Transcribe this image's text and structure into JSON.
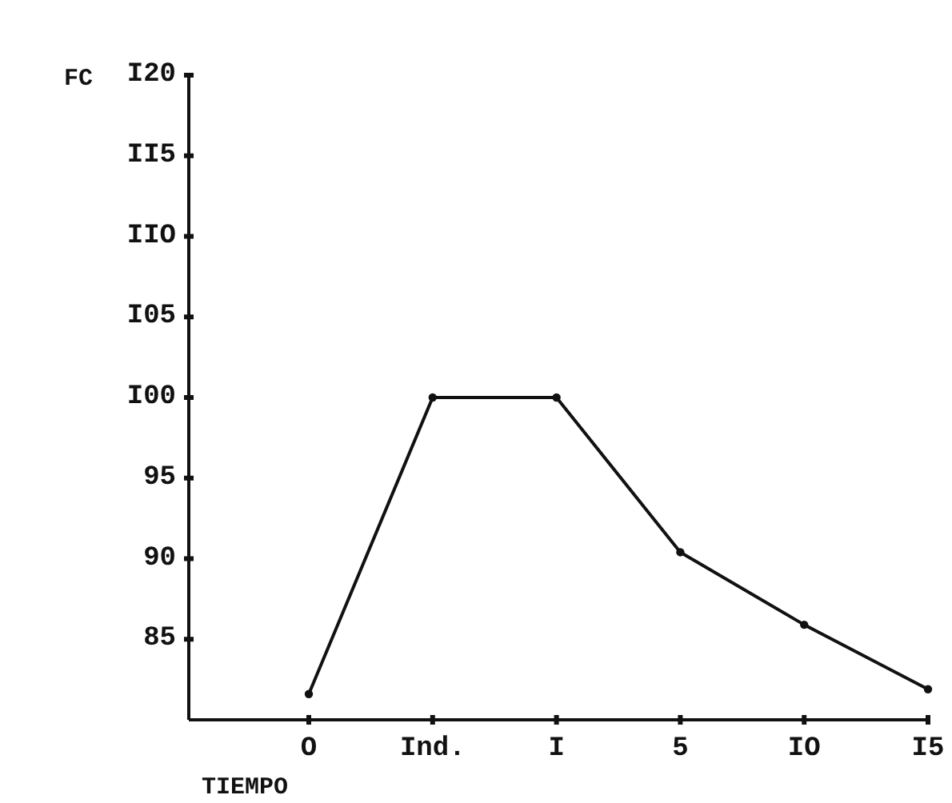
{
  "chart_data": {
    "type": "line",
    "ylabel": "FC",
    "xlabel": "TIEMPO",
    "categories": [
      "O",
      "Ind.",
      "I",
      "5",
      "IO",
      "I5"
    ],
    "series": [
      {
        "color": "#111111",
        "values": [
          81.6,
          100,
          100,
          90.4,
          85.9,
          81.9
        ]
      }
    ],
    "ylim": [
      80,
      120
    ],
    "yticks": [
      {
        "value": 85,
        "label": "85"
      },
      {
        "value": 90,
        "label": "90"
      },
      {
        "value": 95,
        "label": "95"
      },
      {
        "value": 100,
        "label": "I00"
      },
      {
        "value": 105,
        "label": "I05"
      },
      {
        "value": 110,
        "label": "IIO"
      },
      {
        "value": 115,
        "label": "II5"
      },
      {
        "value": 120,
        "label": "I20"
      }
    ],
    "marker": "circle",
    "line_style": "solid"
  }
}
